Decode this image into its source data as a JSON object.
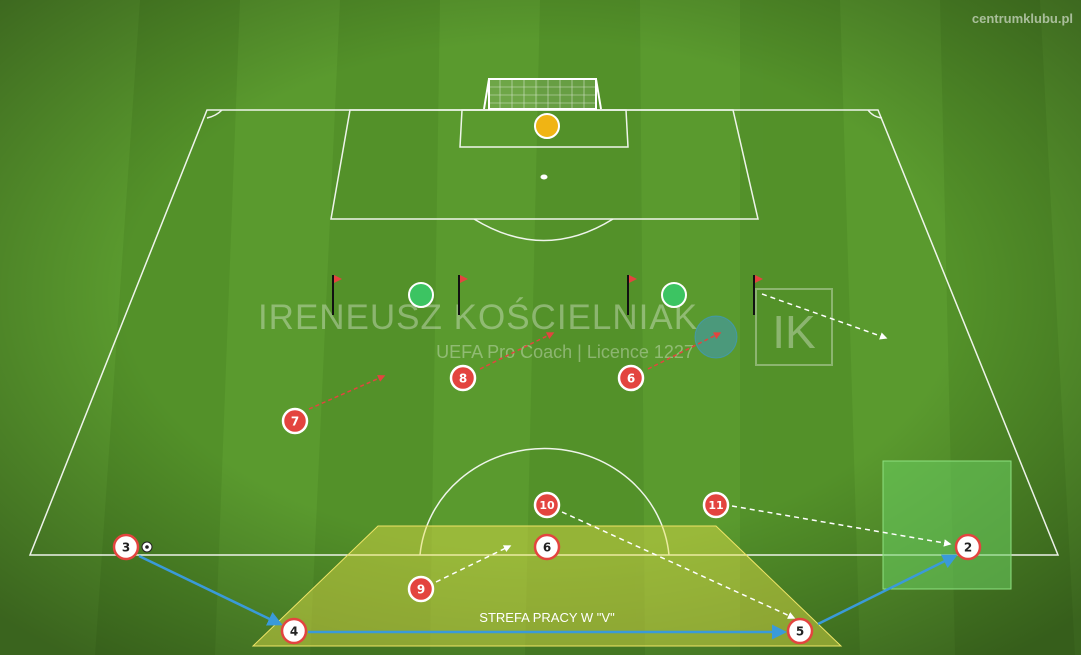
{
  "watermark_site": "centrumklubu.pl",
  "watermark_name": "IRENEUSZ KOŚCIELNIAK",
  "watermark_sub": "UEFA Pro Coach   |   Licence 1227",
  "watermark_logo": "IK",
  "zone_label": "STREFA PRACY W \"V\"",
  "players": [
    {
      "n": "2",
      "kind": "white"
    },
    {
      "n": "3",
      "kind": "white"
    },
    {
      "n": "4",
      "kind": "white"
    },
    {
      "n": "5",
      "kind": "white"
    },
    {
      "n": "6",
      "kind": "white"
    },
    {
      "n": "6",
      "kind": "red"
    },
    {
      "n": "7",
      "kind": "red"
    },
    {
      "n": "8",
      "kind": "red"
    },
    {
      "n": "9",
      "kind": "red"
    },
    {
      "n": "10",
      "kind": "red"
    },
    {
      "n": "11",
      "kind": "red"
    }
  ],
  "colors": {
    "grass_light": "#5d9d31",
    "grass_dark": "#4f8c27",
    "red_player": "#e3443f",
    "white_player": "#ffffff",
    "goalkeeper": "#f0b414",
    "cone_green": "#3cc462",
    "pass_arrow": "#3a9ad9",
    "zone_yellow": "#e6e04a",
    "zone_green": "#6ccf63"
  }
}
